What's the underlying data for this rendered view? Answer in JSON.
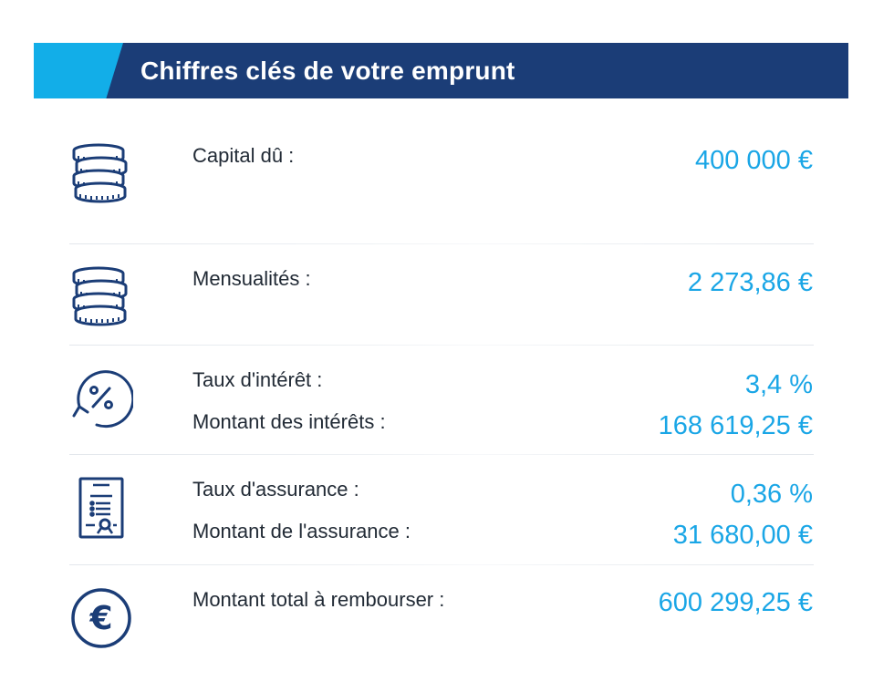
{
  "header": {
    "title": "Chiffres clés de votre emprunt"
  },
  "colors": {
    "header_bg": "#1b3d77",
    "accent": "#12aee8",
    "value_text": "#1aa6e6",
    "icon_stroke": "#1b3d77"
  },
  "rows": [
    {
      "icon": "coins-stack-icon",
      "items": [
        {
          "label": "Capital dû :",
          "value": "400 000 €"
        }
      ]
    },
    {
      "icon": "coins-stack-icon",
      "items": [
        {
          "label": "Mensualités :",
          "value": "2 273,86 €"
        }
      ]
    },
    {
      "icon": "percent-cycle-icon",
      "items": [
        {
          "label": "Taux d'intérêt :",
          "value": "3,4 %"
        },
        {
          "label": "Montant des intérêts :",
          "value": "168 619,25 €"
        }
      ]
    },
    {
      "icon": "insurance-certificate-icon",
      "items": [
        {
          "label": "Taux d'assurance :",
          "value": "0,36 %"
        },
        {
          "label": "Montant de l'assurance :",
          "value": "31 680,00 €"
        }
      ]
    },
    {
      "icon": "euro-coin-icon",
      "items": [
        {
          "label": "Montant total à rembourser :",
          "value": "600 299,25 €"
        }
      ]
    }
  ]
}
